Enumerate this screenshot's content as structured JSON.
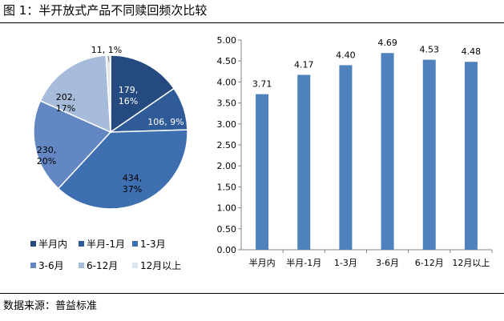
{
  "figure": {
    "title": "图 1：半开放式产品不同赎回频次比较",
    "source": "数据来源：普益标准"
  },
  "chart_data": [
    {
      "type": "pie",
      "categories": [
        "半月内",
        "半月-1月",
        "1-3月",
        "3-6月",
        "6-12月",
        "12月以上"
      ],
      "values": [
        179,
        106,
        434,
        230,
        202,
        11
      ],
      "percent_labels": [
        "16%",
        "9%",
        "37%",
        "20%",
        "17%",
        "1%"
      ],
      "data_labels": [
        "179,\n16%",
        "106, 9%",
        "434,\n37%",
        "230,\n20%",
        "202,\n17%",
        "11, 1%"
      ],
      "colors": [
        "#254a7f",
        "#2f5c98",
        "#3e6fb1",
        "#6287c3",
        "#a7bbdb",
        "#dfe5ef"
      ],
      "legend": "bottom"
    },
    {
      "type": "bar",
      "categories": [
        "半月内",
        "半月-1月",
        "1-3月",
        "3-6月",
        "6-12月",
        "12月以上"
      ],
      "values": [
        3.71,
        4.17,
        4.4,
        4.69,
        4.53,
        4.48
      ],
      "value_labels": [
        "3.71",
        "4.17",
        "4.40",
        "4.69",
        "4.53",
        "4.48"
      ],
      "ylim": [
        0,
        5
      ],
      "yticks": [
        "0.00",
        "0.50",
        "1.00",
        "1.50",
        "2.00",
        "2.50",
        "3.00",
        "3.50",
        "4.00",
        "4.50",
        "5.00"
      ],
      "color": "#4f81bd",
      "grid": false
    }
  ]
}
